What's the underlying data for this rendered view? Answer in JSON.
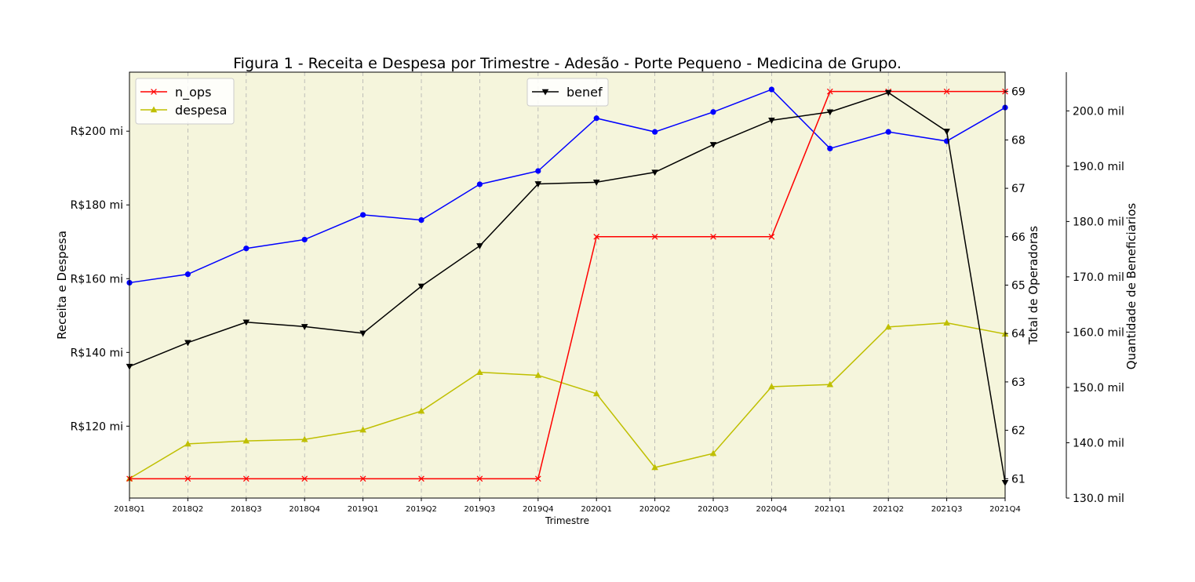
{
  "chart_data": {
    "type": "line",
    "title": "Figura 1 - Receita e Despesa por Trimestre - Adesão - Porte Pequeno - Medicina de Grupo.",
    "xlabel": "Trimestre",
    "categories": [
      "2018Q1",
      "2018Q2",
      "2018Q3",
      "2018Q4",
      "2019Q1",
      "2019Q2",
      "2019Q3",
      "2019Q4",
      "2020Q1",
      "2020Q2",
      "2020Q3",
      "2020Q4",
      "2021Q1",
      "2021Q2",
      "2021Q3",
      "2021Q4"
    ],
    "axes": {
      "left": {
        "label": "Receita e Despesa",
        "ylim": [
          100.5,
          216
        ],
        "ticks": [
          120,
          140,
          160,
          180,
          200
        ],
        "tick_labels": [
          "R$120 mi",
          "R$140 mi",
          "R$160 mi",
          "R$180 mi",
          "R$200 mi"
        ]
      },
      "right1": {
        "label": "Total de Operadoras",
        "ylim": [
          60.6,
          69.4
        ],
        "ticks": [
          61,
          62,
          63,
          64,
          65,
          66,
          67,
          68,
          69
        ],
        "tick_labels": [
          "61",
          "62",
          "63",
          "64",
          "65",
          "66",
          "67",
          "68",
          "69"
        ]
      },
      "right2": {
        "label": "Quantidade de Beneficiarios",
        "ylim": [
          130,
          207
        ],
        "ticks": [
          130,
          140,
          150,
          160,
          170,
          180,
          190,
          200
        ],
        "tick_labels": [
          "130.0 mil",
          "140.0 mil",
          "150.0 mil",
          "160.0 mil",
          "170.0 mil",
          "180.0 mil",
          "190.0 mil",
          "200.0 mil"
        ]
      }
    },
    "series": [
      {
        "axis": "left",
        "color": "#0000ff",
        "marker": "circle",
        "values": [
          158.9,
          161.2,
          168.2,
          170.6,
          177.3,
          175.9,
          185.6,
          189.2,
          203.5,
          199.8,
          205.2,
          211.3,
          195.3,
          199.8,
          197.3,
          206.4
        ]
      },
      {
        "name": "despesa",
        "axis": "left",
        "color": "#bfbf00",
        "marker": "triangle-up",
        "values": [
          105.8,
          115.2,
          116.0,
          116.4,
          119.0,
          124.1,
          134.6,
          133.8,
          128.8,
          108.8,
          112.6,
          130.7,
          131.3,
          146.9,
          148.0,
          145.0
        ]
      },
      {
        "name": "n_ops",
        "axis": "right1",
        "color": "#ff0000",
        "marker": "x",
        "values": [
          61,
          61,
          61,
          61,
          61,
          61,
          61,
          61,
          66,
          66,
          66,
          66,
          69,
          69,
          69,
          69
        ]
      },
      {
        "name": "benef",
        "axis": "right2",
        "color": "#000000",
        "marker": "triangle-down",
        "values": [
          153.8,
          158.1,
          161.8,
          161.0,
          159.8,
          168.3,
          175.6,
          186.8,
          187.1,
          188.9,
          193.9,
          198.3,
          199.8,
          203.3,
          196.3,
          132.8
        ]
      }
    ],
    "legends": [
      {
        "position": "top-left",
        "entries": [
          "n_ops",
          "despesa"
        ]
      },
      {
        "position": "top-center",
        "entries": [
          "benef"
        ]
      }
    ],
    "grid": {
      "x": true,
      "y": false,
      "style": "dashed"
    },
    "plot_background": "#f5f5dc"
  }
}
